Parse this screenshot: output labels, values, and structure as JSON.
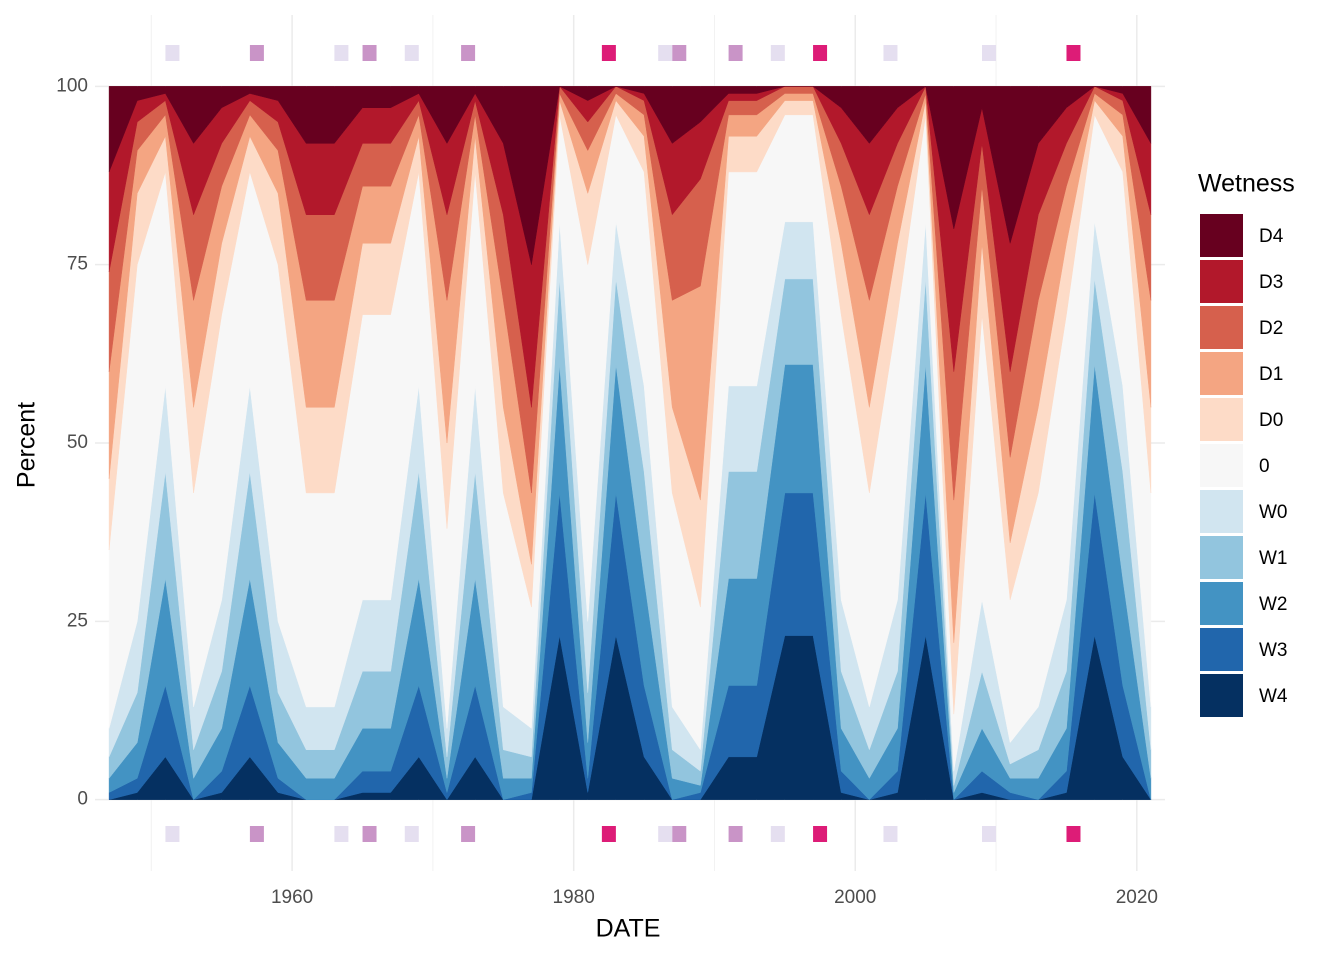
{
  "chart_data": {
    "type": "stacked_area",
    "xlabel": "DATE",
    "ylabel": "Percent",
    "legend_title": "Wetness",
    "x": [
      1947,
      1949,
      1951,
      1953,
      1955,
      1957,
      1959,
      1961,
      1963,
      1965,
      1967,
      1969,
      1971,
      1973,
      1975,
      1977,
      1979,
      1981,
      1983,
      1985,
      1987,
      1989,
      1991,
      1993,
      1995,
      1997,
      1999,
      2001,
      2003,
      2005,
      2007,
      2009,
      2011,
      2013,
      2015,
      2017,
      2019,
      2021
    ],
    "series": [
      {
        "name": "D4",
        "color": "#67001f",
        "values": [
          12,
          2,
          1,
          8,
          3,
          1,
          2,
          8,
          8,
          3,
          3,
          1,
          8,
          1,
          8,
          25,
          0,
          2,
          0,
          1,
          8,
          5,
          1,
          1,
          0,
          0,
          3,
          8,
          3,
          0,
          20,
          3,
          22,
          8,
          3,
          0,
          1,
          8
        ]
      },
      {
        "name": "D3",
        "color": "#b2182b",
        "values": [
          14,
          3,
          1,
          10,
          5,
          1,
          3,
          10,
          10,
          5,
          5,
          1,
          10,
          1,
          10,
          20,
          0,
          3,
          0,
          1,
          10,
          8,
          1,
          1,
          0,
          0,
          5,
          10,
          5,
          0,
          20,
          5,
          18,
          10,
          5,
          0,
          1,
          10
        ]
      },
      {
        "name": "D2",
        "color": "#d6604d",
        "values": [
          14,
          4,
          2,
          12,
          6,
          2,
          4,
          12,
          12,
          6,
          6,
          2,
          12,
          2,
          12,
          12,
          1,
          4,
          1,
          2,
          12,
          15,
          2,
          2,
          1,
          1,
          6,
          12,
          6,
          1,
          18,
          6,
          12,
          12,
          6,
          1,
          2,
          12
        ]
      },
      {
        "name": "D1",
        "color": "#f4a582",
        "values": [
          15,
          6,
          3,
          15,
          8,
          3,
          6,
          15,
          15,
          8,
          8,
          3,
          20,
          3,
          15,
          10,
          1,
          6,
          1,
          3,
          15,
          30,
          3,
          3,
          1,
          1,
          8,
          15,
          8,
          1,
          20,
          8,
          12,
          15,
          8,
          1,
          3,
          15
        ]
      },
      {
        "name": "D0",
        "color": "#fddbc7",
        "values": [
          10,
          10,
          5,
          12,
          10,
          5,
          10,
          12,
          12,
          10,
          10,
          5,
          12,
          5,
          12,
          6,
          2,
          10,
          2,
          5,
          12,
          15,
          5,
          5,
          2,
          2,
          10,
          12,
          10,
          2,
          10,
          10,
          8,
          12,
          10,
          2,
          5,
          12
        ]
      },
      {
        "name": "0",
        "color": "#f7f7f7",
        "values": [
          25,
          50,
          30,
          30,
          40,
          30,
          50,
          30,
          30,
          40,
          40,
          30,
          28,
          30,
          30,
          17,
          15,
          50,
          15,
          30,
          30,
          20,
          30,
          30,
          15,
          15,
          40,
          30,
          40,
          15,
          8,
          40,
          20,
          30,
          40,
          15,
          30,
          30
        ]
      },
      {
        "name": "W0",
        "color": "#d1e5f0",
        "values": [
          4,
          10,
          12,
          6,
          10,
          12,
          10,
          6,
          6,
          10,
          10,
          12,
          4,
          12,
          6,
          4,
          8,
          10,
          8,
          12,
          6,
          3,
          12,
          12,
          8,
          8,
          10,
          6,
          10,
          8,
          2,
          10,
          3,
          6,
          10,
          8,
          12,
          6
        ]
      },
      {
        "name": "W1",
        "color": "#92c5de",
        "values": [
          3,
          7,
          15,
          4,
          8,
          15,
          7,
          4,
          4,
          8,
          8,
          15,
          3,
          15,
          4,
          3,
          12,
          7,
          12,
          15,
          4,
          2,
          15,
          15,
          12,
          12,
          8,
          4,
          8,
          12,
          1,
          8,
          2,
          4,
          8,
          12,
          15,
          4
        ]
      },
      {
        "name": "W2",
        "color": "#4393c3",
        "values": [
          2,
          5,
          15,
          3,
          6,
          15,
          5,
          3,
          3,
          6,
          6,
          15,
          2,
          15,
          3,
          2,
          18,
          5,
          18,
          15,
          3,
          1,
          15,
          15,
          18,
          18,
          6,
          3,
          6,
          18,
          1,
          6,
          2,
          3,
          6,
          18,
          15,
          3
        ]
      },
      {
        "name": "W3",
        "color": "#2166ac",
        "values": [
          1,
          2,
          10,
          0,
          3,
          10,
          2,
          0,
          0,
          3,
          3,
          10,
          1,
          10,
          0,
          1,
          20,
          2,
          20,
          10,
          0,
          1,
          10,
          10,
          20,
          20,
          3,
          0,
          3,
          20,
          0,
          3,
          1,
          0,
          3,
          20,
          10,
          0
        ]
      },
      {
        "name": "W4",
        "color": "#053061",
        "values": [
          0,
          1,
          6,
          0,
          1,
          6,
          1,
          0,
          0,
          1,
          1,
          6,
          0,
          6,
          0,
          0,
          23,
          1,
          23,
          6,
          0,
          0,
          6,
          6,
          23,
          23,
          1,
          0,
          1,
          23,
          0,
          1,
          0,
          0,
          1,
          23,
          6,
          0
        ]
      }
    ],
    "markers": {
      "x": [
        1951,
        1957,
        1963,
        1965,
        1968,
        1972,
        1982,
        1986,
        1987,
        1991,
        1994,
        1997,
        2002,
        2009,
        2015
      ],
      "colors": [
        "#e5dff0",
        "#c994c7",
        "#e5dff0",
        "#c994c7",
        "#e5dff0",
        "#c994c7",
        "#dd1c77",
        "#e5dff0",
        "#c994c7",
        "#c994c7",
        "#e5dff0",
        "#dd1c77",
        "#e5dff0",
        "#e5dff0",
        "#dd1c77"
      ]
    },
    "xlim": [
      1946,
      2022
    ],
    "xticks": [
      1960,
      1980,
      2000,
      2020
    ],
    "xminor": [
      1950,
      1970,
      1990,
      2010
    ],
    "ylim": [
      -10,
      110
    ],
    "yticks": [
      0,
      25,
      50,
      75,
      100
    ],
    "grid": true
  }
}
